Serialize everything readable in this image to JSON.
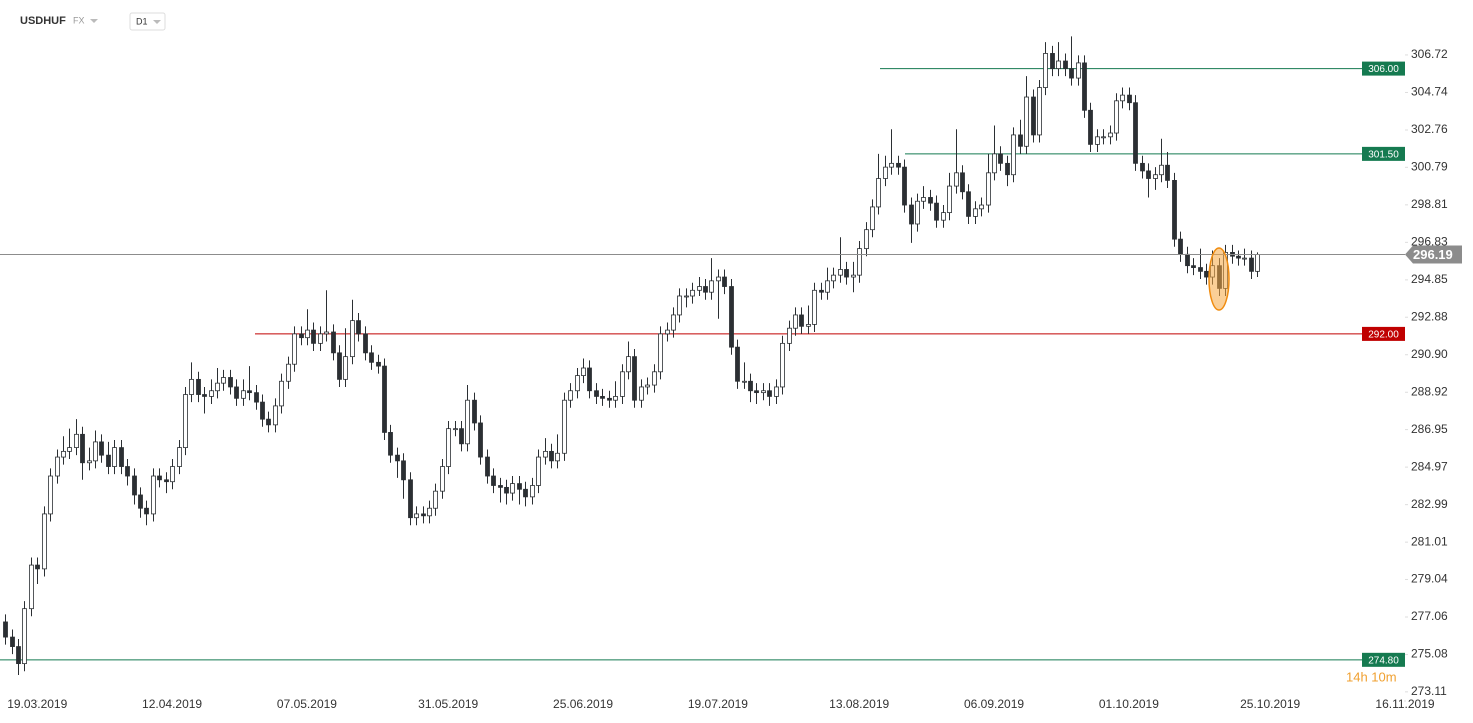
{
  "chart_data": {
    "type": "candlestick",
    "symbol": "USDHUF",
    "market": "FX",
    "timeframe": "D1",
    "countdown": "14h 10m",
    "ylim": [
      272.68,
      309.62
    ],
    "yticks": [
      306.72,
      304.74,
      302.76,
      300.79,
      298.81,
      296.83,
      294.85,
      292.88,
      {
        "value": 290.9,
        "label": "290.90"
      },
      288.92,
      286.95,
      284.97,
      282.99,
      281.01,
      279.04,
      277.06,
      275.08,
      273.11
    ],
    "xlim": [
      -0.8,
      218
    ],
    "xticks": [
      {
        "value": 5,
        "label": "19.03.2019"
      },
      {
        "value": 26,
        "label": "12.04.2019"
      },
      {
        "value": 47,
        "label": "07.05.2019"
      },
      {
        "value": 69,
        "label": "31.05.2019"
      },
      {
        "value": 90,
        "label": "25.06.2019"
      },
      {
        "value": 111,
        "label": "19.07.2019"
      },
      {
        "value": 133,
        "label": "13.08.2019"
      },
      {
        "value": 154,
        "label": "06.09.2019"
      },
      {
        "value": 175,
        "label": "01.10.2019"
      },
      {
        "value": 197,
        "label": "25.10.2019"
      },
      {
        "value": 218,
        "label": "16.11.2019"
      }
    ],
    "up_color": "#ffffff",
    "down_color": "#2b2f33",
    "last_color": "#8c8c8c",
    "levels": [
      {
        "value": 306,
        "label": "306.00",
        "color": "#157a50"
      },
      {
        "value": 301.5,
        "label": "301.50",
        "color": "#157a50"
      },
      {
        "value": 292,
        "label": "292.00",
        "color": "#c00000"
      },
      {
        "value": 274.8,
        "label": "274.80",
        "color": "#157a50"
      }
    ],
    "ohlc": [
      [
        276.8,
        277.2,
        275.6,
        276.0
      ],
      [
        276.0,
        276.4,
        275.1,
        275.5
      ],
      [
        275.5,
        275.9,
        274.0,
        274.6
      ],
      [
        274.6,
        277.9,
        274.2,
        277.5
      ],
      [
        277.5,
        280.2,
        277.1,
        279.8
      ],
      [
        279.8,
        280.2,
        278.8,
        279.6
      ],
      [
        279.6,
        282.9,
        279.2,
        282.5
      ],
      [
        282.5,
        284.9,
        282.1,
        284.5
      ],
      [
        284.5,
        285.9,
        284.1,
        285.5
      ],
      [
        285.5,
        286.6,
        285.1,
        285.8
      ],
      [
        285.8,
        287.0,
        285.4,
        286.0
      ],
      [
        286.0,
        287.5,
        285.6,
        286.7
      ],
      [
        286.7,
        287.1,
        284.3,
        285.2
      ],
      [
        285.2,
        286.0,
        284.8,
        285.3
      ],
      [
        285.3,
        286.9,
        284.9,
        286.3
      ],
      [
        286.3,
        286.7,
        285.2,
        285.6
      ],
      [
        285.6,
        286.3,
        284.6,
        285.0
      ],
      [
        285.0,
        286.4,
        284.6,
        286.0
      ],
      [
        286.0,
        286.4,
        284.6,
        285.0
      ],
      [
        285.0,
        285.4,
        284.0,
        284.5
      ],
      [
        284.5,
        284.9,
        283.0,
        283.5
      ],
      [
        283.5,
        283.9,
        282.3,
        282.8
      ],
      [
        282.8,
        283.2,
        281.9,
        282.5
      ],
      [
        282.5,
        284.9,
        282.1,
        284.5
      ],
      [
        284.5,
        284.9,
        283.9,
        284.3
      ],
      [
        284.3,
        284.7,
        283.6,
        284.2
      ],
      [
        284.2,
        285.4,
        283.8,
        285.0
      ],
      [
        285.0,
        286.4,
        284.6,
        286.0
      ],
      [
        286.0,
        289.2,
        285.6,
        288.8
      ],
      [
        288.8,
        290.5,
        288.4,
        289.6
      ],
      [
        289.6,
        290.0,
        288.4,
        288.8
      ],
      [
        288.8,
        289.2,
        287.8,
        288.7
      ],
      [
        288.7,
        289.6,
        288.3,
        289.0
      ],
      [
        289.0,
        290.2,
        288.6,
        289.4
      ],
      [
        289.4,
        290.1,
        289.0,
        289.7
      ],
      [
        289.7,
        290.1,
        288.8,
        289.2
      ],
      [
        289.2,
        289.6,
        288.2,
        288.6
      ],
      [
        288.6,
        289.6,
        288.2,
        289.0
      ],
      [
        289.0,
        290.3,
        288.5,
        288.9
      ],
      [
        288.9,
        289.3,
        288.0,
        288.4
      ],
      [
        288.4,
        288.8,
        287.1,
        287.5
      ],
      [
        287.5,
        287.9,
        286.8,
        287.2
      ],
      [
        287.2,
        288.6,
        286.8,
        288.2
      ],
      [
        288.2,
        289.9,
        287.8,
        289.5
      ],
      [
        289.5,
        290.8,
        289.1,
        290.4
      ],
      [
        290.4,
        292.4,
        290.0,
        292.0
      ],
      [
        292.0,
        292.4,
        291.4,
        291.8
      ],
      [
        291.8,
        293.3,
        291.4,
        292.2
      ],
      [
        292.2,
        292.6,
        291.1,
        291.5
      ],
      [
        291.5,
        292.4,
        291.1,
        292.0
      ],
      [
        292.0,
        294.3,
        291.6,
        292.1
      ],
      [
        292.1,
        292.5,
        290.6,
        291.0
      ],
      [
        291.0,
        291.4,
        289.2,
        289.6
      ],
      [
        289.6,
        292.3,
        289.2,
        290.8
      ],
      [
        290.8,
        293.8,
        290.4,
        292.7
      ],
      [
        292.7,
        293.1,
        291.6,
        292.0
      ],
      [
        292.0,
        292.4,
        290.6,
        291.0
      ],
      [
        291.0,
        291.4,
        290.1,
        290.5
      ],
      [
        290.5,
        290.9,
        289.9,
        290.3
      ],
      [
        290.3,
        290.7,
        286.4,
        286.8
      ],
      [
        286.8,
        287.2,
        285.2,
        285.6
      ],
      [
        285.6,
        286.0,
        284.4,
        285.3
      ],
      [
        285.3,
        285.7,
        283.3,
        284.3
      ],
      [
        284.3,
        284.7,
        281.9,
        282.3
      ],
      [
        282.3,
        282.9,
        281.9,
        282.5
      ],
      [
        282.5,
        282.9,
        282.0,
        282.4
      ],
      [
        282.4,
        283.2,
        282.0,
        282.8
      ],
      [
        282.8,
        284.1,
        282.4,
        283.7
      ],
      [
        283.7,
        285.4,
        283.3,
        285.0
      ],
      [
        285.0,
        287.4,
        284.6,
        287.0
      ],
      [
        287.0,
        287.4,
        286.6,
        287.0
      ],
      [
        287.0,
        287.4,
        285.8,
        286.2
      ],
      [
        286.2,
        289.3,
        285.8,
        288.5
      ],
      [
        288.5,
        288.9,
        286.9,
        287.3
      ],
      [
        287.3,
        287.7,
        285.1,
        285.5
      ],
      [
        285.5,
        285.9,
        284.1,
        284.5
      ],
      [
        284.5,
        284.9,
        283.6,
        284.0
      ],
      [
        284.0,
        284.4,
        283.1,
        283.9
      ],
      [
        283.9,
        284.3,
        283.0,
        283.6
      ],
      [
        283.6,
        284.5,
        283.2,
        284.1
      ],
      [
        284.1,
        284.5,
        283.0,
        283.8
      ],
      [
        283.8,
        284.2,
        282.9,
        283.4
      ],
      [
        283.4,
        284.4,
        283.0,
        284.0
      ],
      [
        284.0,
        285.9,
        283.6,
        285.5
      ],
      [
        285.5,
        286.5,
        285.1,
        285.8
      ],
      [
        285.8,
        286.2,
        284.9,
        285.3
      ],
      [
        285.3,
        286.7,
        284.9,
        285.7
      ],
      [
        285.7,
        288.9,
        285.3,
        288.5
      ],
      [
        288.5,
        289.4,
        288.1,
        289.0
      ],
      [
        289.0,
        290.2,
        288.6,
        289.8
      ],
      [
        289.8,
        290.7,
        289.4,
        290.2
      ],
      [
        290.2,
        290.6,
        288.6,
        289.0
      ],
      [
        289.0,
        289.4,
        288.3,
        288.7
      ],
      [
        288.7,
        289.1,
        288.2,
        288.6
      ],
      [
        288.6,
        289.0,
        288.1,
        288.5
      ],
      [
        288.5,
        289.5,
        288.1,
        288.7
      ],
      [
        288.7,
        290.4,
        288.3,
        290.0
      ],
      [
        290.0,
        291.6,
        289.6,
        290.8
      ],
      [
        290.8,
        291.2,
        288.1,
        288.5
      ],
      [
        288.5,
        289.6,
        288.1,
        289.2
      ],
      [
        289.2,
        289.7,
        288.8,
        289.3
      ],
      [
        289.3,
        290.4,
        288.9,
        290.0
      ],
      [
        290.0,
        292.4,
        289.6,
        292.0
      ],
      [
        292.0,
        292.6,
        291.6,
        292.2
      ],
      [
        292.2,
        293.4,
        291.8,
        293.0
      ],
      [
        293.0,
        294.4,
        292.6,
        294.0
      ],
      [
        294.0,
        294.4,
        293.4,
        294.0
      ],
      [
        294.0,
        294.7,
        293.6,
        294.3
      ],
      [
        294.3,
        295.0,
        294.0,
        294.5
      ],
      [
        294.5,
        294.9,
        293.8,
        294.2
      ],
      [
        294.2,
        296.0,
        293.8,
        294.8
      ],
      [
        294.8,
        295.4,
        292.8,
        295.0
      ],
      [
        295.0,
        295.4,
        294.1,
        294.5
      ],
      [
        294.5,
        294.9,
        290.9,
        291.3
      ],
      [
        291.3,
        291.7,
        289.1,
        289.5
      ],
      [
        289.5,
        290.5,
        289.1,
        289.5
      ],
      [
        289.5,
        289.9,
        288.4,
        289.0
      ],
      [
        289.0,
        289.4,
        288.3,
        288.9
      ],
      [
        288.9,
        289.4,
        288.5,
        289.0
      ],
      [
        289.0,
        289.4,
        288.2,
        288.7
      ],
      [
        288.7,
        289.6,
        288.3,
        289.2
      ],
      [
        289.2,
        291.9,
        288.8,
        291.5
      ],
      [
        291.5,
        292.7,
        291.1,
        292.3
      ],
      [
        292.3,
        293.4,
        291.9,
        293.0
      ],
      [
        293.0,
        293.4,
        292.0,
        292.4
      ],
      [
        292.4,
        293.5,
        292.0,
        292.5
      ],
      [
        292.5,
        294.7,
        292.1,
        294.3
      ],
      [
        294.3,
        294.7,
        293.8,
        294.2
      ],
      [
        294.2,
        295.5,
        293.8,
        294.8
      ],
      [
        294.8,
        295.5,
        294.4,
        295.1
      ],
      [
        295.1,
        297.1,
        294.7,
        295.4
      ],
      [
        295.4,
        295.8,
        294.6,
        295.0
      ],
      [
        295.0,
        295.8,
        294.2,
        295.1
      ],
      [
        295.1,
        296.9,
        294.7,
        296.5
      ],
      [
        296.5,
        297.9,
        296.1,
        297.5
      ],
      [
        297.5,
        299.1,
        297.1,
        298.7
      ],
      [
        298.7,
        301.5,
        298.3,
        300.2
      ],
      [
        300.2,
        301.4,
        299.8,
        300.8
      ],
      [
        300.8,
        302.8,
        300.4,
        301.0
      ],
      [
        301.0,
        301.4,
        300.4,
        300.8
      ],
      [
        300.8,
        301.2,
        298.4,
        298.8
      ],
      [
        298.8,
        299.2,
        296.8,
        297.8
      ],
      [
        297.8,
        299.4,
        297.4,
        299.0
      ],
      [
        299.0,
        299.8,
        298.6,
        299.2
      ],
      [
        299.2,
        299.6,
        298.5,
        298.9
      ],
      [
        298.9,
        299.3,
        297.6,
        298.0
      ],
      [
        298.0,
        298.8,
        297.6,
        298.4
      ],
      [
        298.4,
        300.5,
        298.0,
        299.8
      ],
      [
        299.8,
        302.8,
        299.4,
        300.5
      ],
      [
        300.5,
        300.9,
        299.1,
        299.5
      ],
      [
        299.5,
        299.9,
        297.8,
        298.2
      ],
      [
        298.2,
        299.0,
        297.8,
        298.6
      ],
      [
        298.6,
        299.2,
        298.2,
        298.8
      ],
      [
        298.8,
        301.5,
        298.4,
        300.5
      ],
      [
        300.5,
        303.0,
        300.1,
        301.5
      ],
      [
        301.5,
        301.9,
        300.6,
        301.0
      ],
      [
        301.0,
        301.4,
        299.8,
        300.4
      ],
      [
        300.4,
        302.9,
        300.0,
        302.5
      ],
      [
        302.5,
        303.3,
        301.5,
        301.9
      ],
      [
        301.9,
        305.6,
        301.5,
        304.5
      ],
      [
        304.5,
        304.9,
        302.1,
        302.5
      ],
      [
        302.5,
        305.4,
        302.1,
        305.0
      ],
      [
        305.0,
        307.4,
        304.6,
        306.8
      ],
      [
        306.8,
        307.2,
        305.6,
        306.0
      ],
      [
        306.0,
        307.4,
        305.6,
        306.4
      ],
      [
        306.4,
        306.8,
        305.6,
        306.0
      ],
      [
        306.0,
        307.7,
        305.1,
        305.5
      ],
      [
        305.5,
        306.7,
        305.1,
        306.3
      ],
      [
        306.3,
        306.7,
        303.4,
        303.8
      ],
      [
        303.8,
        304.2,
        301.6,
        302.0
      ],
      [
        302.0,
        302.8,
        301.6,
        302.4
      ],
      [
        302.4,
        302.8,
        302.0,
        302.4
      ],
      [
        302.4,
        303.0,
        302.0,
        302.6
      ],
      [
        302.6,
        304.7,
        302.2,
        304.3
      ],
      [
        304.3,
        305.0,
        303.9,
        304.6
      ],
      [
        304.6,
        305.0,
        303.8,
        304.2
      ],
      [
        304.2,
        304.6,
        300.6,
        301.0
      ],
      [
        301.0,
        301.4,
        300.2,
        300.6
      ],
      [
        300.6,
        301.0,
        299.2,
        300.2
      ],
      [
        300.2,
        300.8,
        299.6,
        300.4
      ],
      [
        300.4,
        302.3,
        300.0,
        300.9
      ],
      [
        300.9,
        301.6,
        299.7,
        300.1
      ],
      [
        300.1,
        300.5,
        296.6,
        297.0
      ],
      [
        297.0,
        297.4,
        295.8,
        296.2
      ],
      [
        296.2,
        296.6,
        295.2,
        295.6
      ],
      [
        295.6,
        296.0,
        295.1,
        295.5
      ],
      [
        295.5,
        296.5,
        294.9,
        295.3
      ],
      [
        295.3,
        295.7,
        294.6,
        295.0
      ],
      [
        295.0,
        296.4,
        294.6,
        295.6
      ],
      [
        295.6,
        296.0,
        294.0,
        294.4
      ],
      [
        294.4,
        296.7,
        294.0,
        296.3
      ],
      [
        296.3,
        296.7,
        295.7,
        296.1
      ],
      [
        296.1,
        296.4,
        295.6,
        296.0
      ],
      [
        296.0,
        296.5,
        295.6,
        296.0
      ],
      [
        296.0,
        296.4,
        294.9,
        295.3
      ],
      [
        295.3,
        296.3,
        295.0,
        296.19
      ]
    ]
  }
}
